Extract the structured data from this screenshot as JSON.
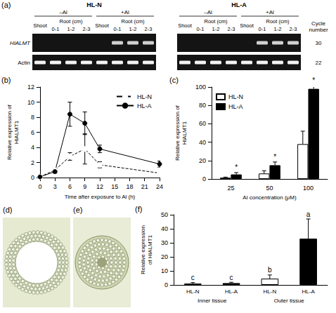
{
  "gel": {
    "panel_label": "(a)",
    "blocks": [
      {
        "title": "HL-N"
      },
      {
        "title": "HL-A"
      }
    ],
    "treatments": [
      "–Al",
      "+Al"
    ],
    "shoot_label": "Shoot",
    "root_label": "Root (cm)",
    "root_segments": [
      "0-1",
      "1-2",
      "2-3"
    ],
    "cycle_header": "Cycle number",
    "rows": [
      {
        "gene": "HlALMT",
        "cycles": 30,
        "bands": [
          [
            false,
            false,
            false,
            false,
            false,
            true,
            true,
            true
          ],
          [
            false,
            false,
            false,
            false,
            false,
            true,
            true,
            true
          ]
        ]
      },
      {
        "gene": "Actin",
        "cycles": 22,
        "bands": [
          [
            true,
            true,
            true,
            true,
            true,
            true,
            true,
            true
          ],
          [
            true,
            true,
            true,
            true,
            true,
            true,
            true,
            true
          ]
        ]
      }
    ]
  },
  "micrographs": [
    {
      "panel_label": "(d)"
    },
    {
      "panel_label": "(e)"
    }
  ],
  "chart_data": [
    {
      "panel_label": "(b)",
      "type": "line",
      "x_label": "Time after exposure to Al (h)",
      "y_label": "Relative expression of HlALMT1",
      "xlim": [
        0,
        24
      ],
      "xticks": [
        0,
        3,
        6,
        9,
        12,
        15,
        18,
        21,
        24
      ],
      "ylim": [
        0,
        12
      ],
      "yticks": [
        0,
        2,
        4,
        6,
        8,
        10,
        12
      ],
      "grid": false,
      "legend": "top-right",
      "x": [
        0,
        3,
        6,
        9,
        12,
        24
      ],
      "series": [
        {
          "name": "HL-N",
          "color": "#000000",
          "marker": "open",
          "line_style": "dashed",
          "values": [
            0.1,
            1.0,
            2.8,
            3.8,
            1.7,
            0.6
          ],
          "errors": [
            0.05,
            0.2,
            0.5,
            2.0,
            0.4,
            0.2
          ]
        },
        {
          "name": "HL-A",
          "color": "#000000",
          "marker": "filled",
          "line_style": "solid",
          "values": [
            0.1,
            0.8,
            8.4,
            7.2,
            3.8,
            1.8
          ],
          "errors": [
            0.05,
            0.2,
            1.6,
            1.5,
            0.5,
            0.4
          ]
        }
      ]
    },
    {
      "panel_label": "(c)",
      "type": "bar",
      "x_label": "Al concentration (μM)",
      "y_label": "Relative expression of HlALMT1",
      "categories": [
        "25",
        "50",
        "100"
      ],
      "ylim": [
        0,
        100
      ],
      "yticks": [
        0,
        20,
        40,
        60,
        80,
        100
      ],
      "grid": false,
      "legend": "top-left",
      "series": [
        {
          "name": "HL-N",
          "color": "#ffffff",
          "values": [
            1.5,
            6,
            38
          ],
          "errors": [
            0.6,
            3,
            14
          ]
        },
        {
          "name": "HL-A",
          "color": "#000000",
          "values": [
            5,
            15,
            98
          ],
          "errors": [
            2,
            3.5,
            4
          ],
          "significance": [
            "*",
            "*",
            "*"
          ]
        }
      ]
    },
    {
      "panel_label": "(f)",
      "type": "bar",
      "y_label": "Relative expression of HlALMT1",
      "categories": [
        "HL-N",
        "HL-A",
        "HL-N",
        "HL-A"
      ],
      "group_labels": [
        "Inner tissue",
        "Outer tissue"
      ],
      "ylim": [
        0,
        50
      ],
      "yticks": [
        0,
        10,
        20,
        30,
        40,
        50
      ],
      "grid": false,
      "values": [
        1.0,
        1.3,
        4.5,
        33
      ],
      "errors": [
        0.7,
        0.6,
        2.6,
        14
      ],
      "colors": [
        "#ffffff",
        "#000000",
        "#ffffff",
        "#000000"
      ],
      "significance": [
        "c",
        "c",
        "b",
        "a"
      ]
    }
  ]
}
